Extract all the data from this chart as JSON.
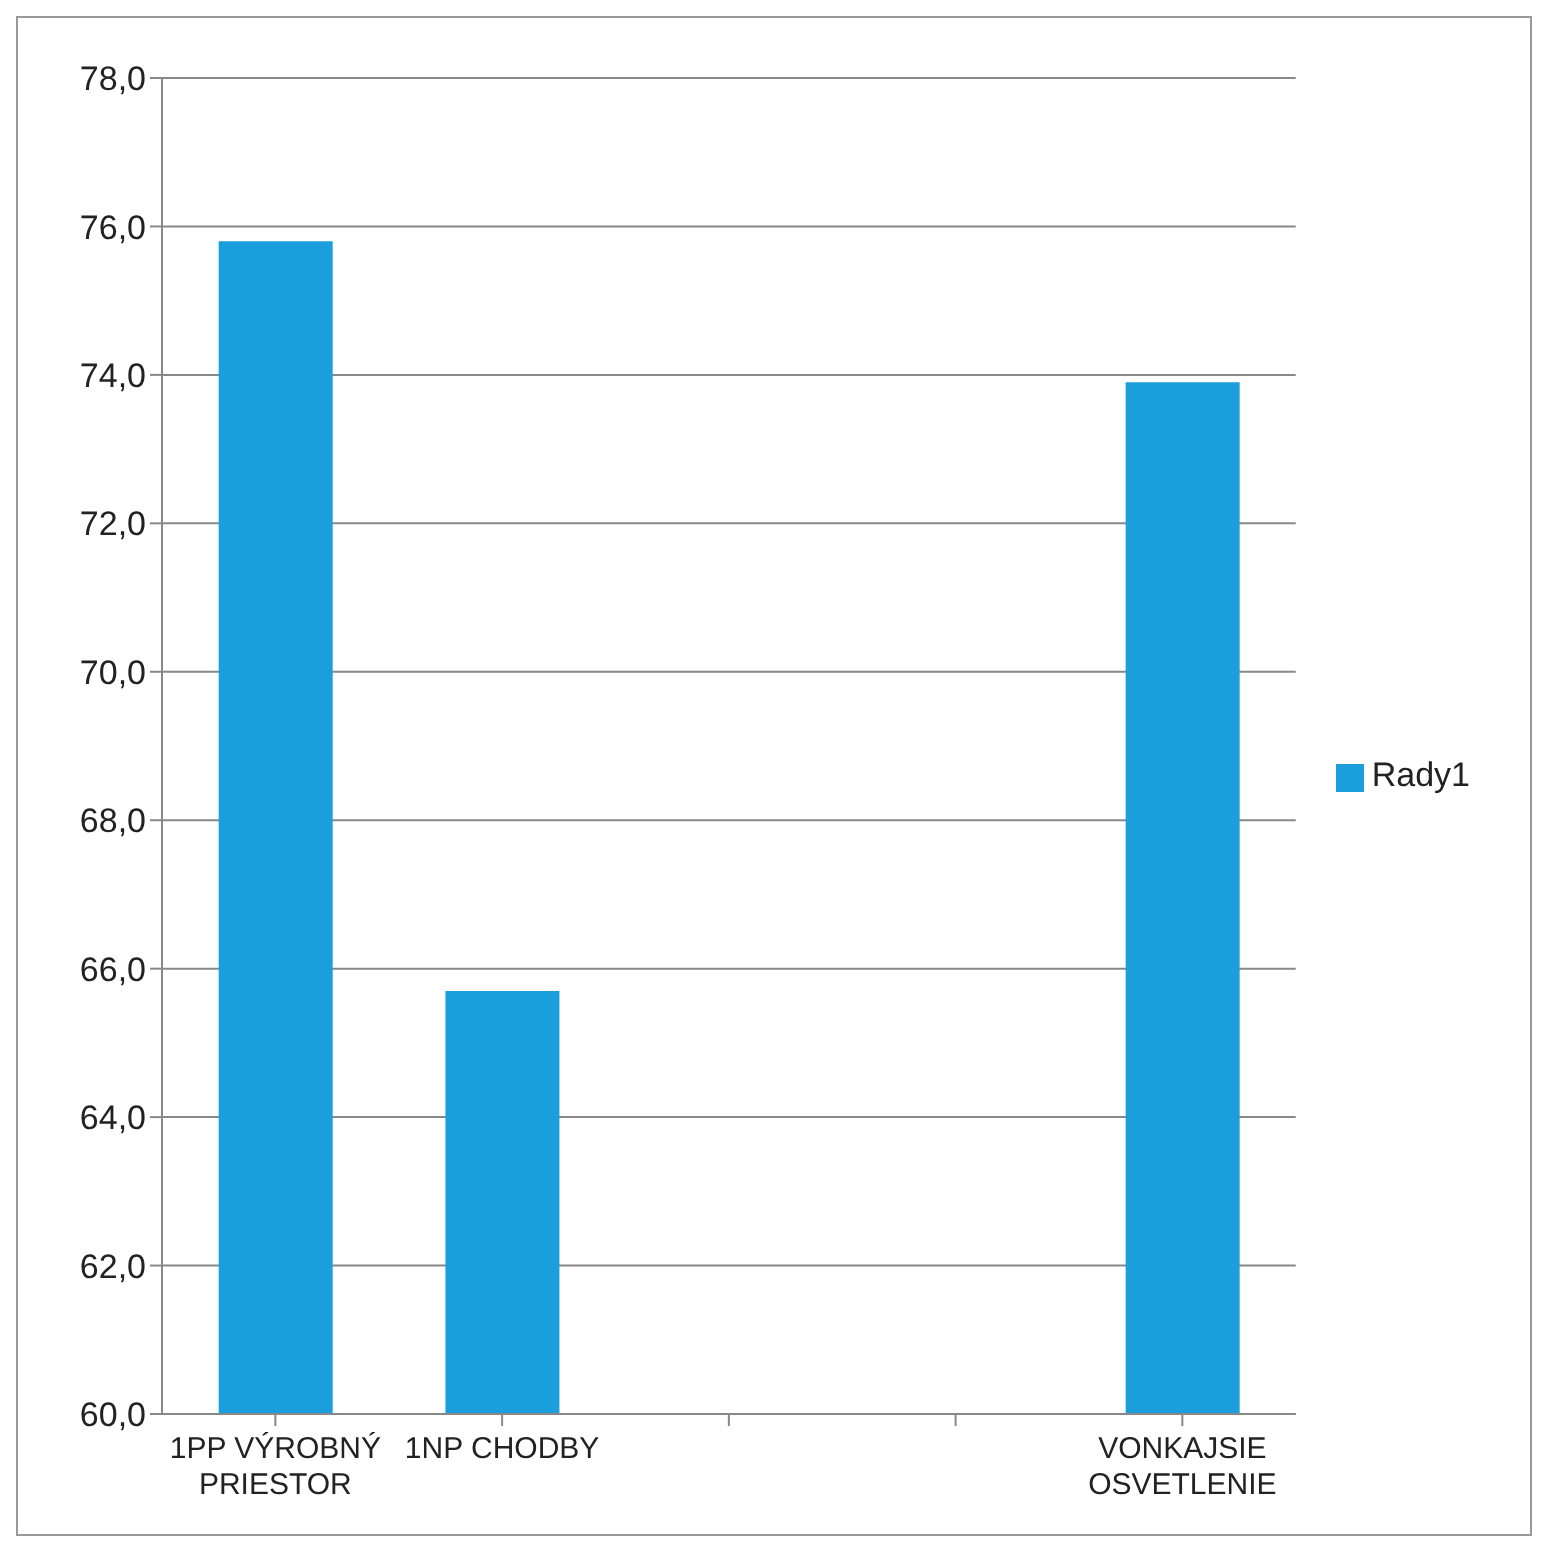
{
  "chart_data": {
    "type": "bar",
    "categories": [
      "1PP VÝROBNÝ PRIESTOR",
      "1NP CHODBY",
      null,
      null,
      "VONKAJSIE OSVETLENIE"
    ],
    "series": [
      {
        "name": "Rady1",
        "color": "#1a9fdc",
        "values": [
          75.8,
          65.7,
          null,
          null,
          73.9
        ]
      }
    ],
    "ylim": [
      60,
      78
    ],
    "yticks": [
      {
        "value": 60,
        "label": "60,0"
      },
      {
        "value": 62,
        "label": "62,0"
      },
      {
        "value": 64,
        "label": "64,0"
      },
      {
        "value": 66,
        "label": "66,0"
      },
      {
        "value": 68,
        "label": "68,0"
      },
      {
        "value": 70,
        "label": "70,0"
      },
      {
        "value": 72,
        "label": "72,0"
      },
      {
        "value": 74,
        "label": "74,0"
      },
      {
        "value": 76,
        "label": "76,0"
      },
      {
        "value": 78,
        "label": "78,0"
      }
    ],
    "grid": "y",
    "legend": "right"
  }
}
